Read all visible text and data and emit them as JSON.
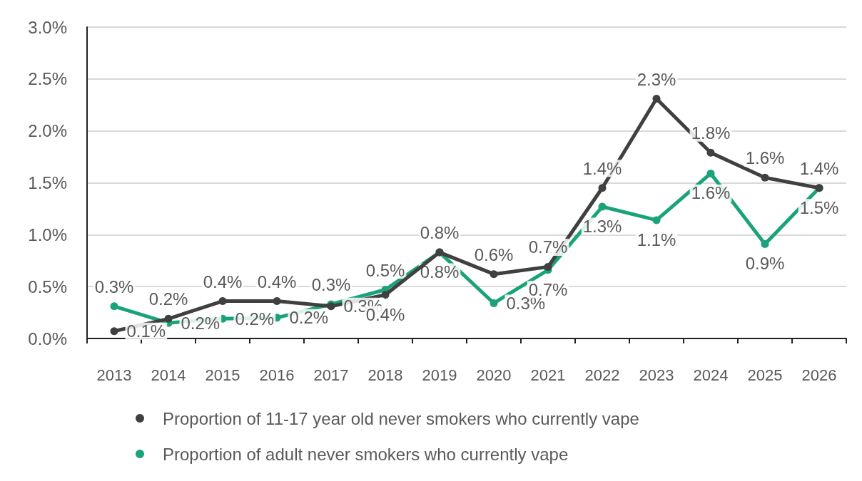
{
  "chart_data": {
    "type": "line",
    "categories": [
      "2013",
      "2014",
      "2015",
      "2016",
      "2017",
      "2018",
      "2019",
      "2020",
      "2021",
      "2022",
      "2023",
      "2024",
      "2025",
      "2026"
    ],
    "series": [
      {
        "name": "Proportion of 11-17 year old never smokers who currently vape",
        "color": "#404040",
        "values": [
          0.07,
          0.19,
          0.36,
          0.36,
          0.31,
          0.42,
          0.83,
          0.62,
          0.69,
          1.45,
          2.31,
          1.79,
          1.55,
          1.45
        ],
        "value_labels": [
          "0.1%",
          "0.2%",
          "0.4%",
          "0.4%",
          "0.3%",
          "0.4%",
          "0.8%",
          "0.6%",
          "0.7%",
          "1.4%",
          "2.3%",
          "1.8%",
          "1.6%",
          "1.4%"
        ]
      },
      {
        "name": "Proportion of adult never smokers who currently vape",
        "color": "#1aa37a",
        "values": [
          0.31,
          0.15,
          0.19,
          0.2,
          0.33,
          0.47,
          0.83,
          0.34,
          0.66,
          1.27,
          1.14,
          1.59,
          0.91,
          1.45
        ],
        "value_labels": [
          "0.3%",
          "0.2%",
          "0.2%",
          "0.2%",
          "0.3%",
          "0.5%",
          "0.8%",
          "0.3%",
          "0.7%",
          "1.3%",
          "1.1%",
          "1.6%",
          "0.9%",
          "1.5%"
        ]
      }
    ],
    "ylim": [
      0,
      3
    ],
    "yticks": [
      {
        "value": 0,
        "label": "0.0%"
      },
      {
        "value": 0.5,
        "label": "0.5%"
      },
      {
        "value": 1,
        "label": "1.0%"
      },
      {
        "value": 1.5,
        "label": "1.5%"
      },
      {
        "value": 2,
        "label": "2.0%"
      },
      {
        "value": 2.5,
        "label": "2.5%"
      },
      {
        "value": 3,
        "label": "3.0%"
      }
    ],
    "grid": "y",
    "legend": "bottom",
    "marker": "circle",
    "line_style": "solid"
  }
}
